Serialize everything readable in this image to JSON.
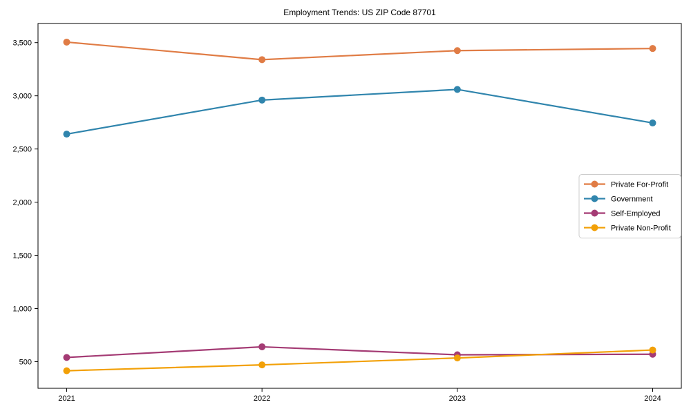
{
  "chart_data": {
    "type": "line",
    "title": "Employment Trends: US ZIP Code 87701",
    "xlabel": "",
    "ylabel": "",
    "categories": [
      "2021",
      "2022",
      "2023",
      "2024"
    ],
    "series": [
      {
        "name": "Private For-Profit",
        "color": "#E07C45",
        "values": [
          3505,
          3340,
          3425,
          3445
        ]
      },
      {
        "name": "Government",
        "color": "#3085AD",
        "values": [
          2640,
          2960,
          3060,
          2745
        ]
      },
      {
        "name": "Self-Employed",
        "color": "#A43B74",
        "values": [
          540,
          640,
          565,
          570
        ]
      },
      {
        "name": "Private Non-Profit",
        "color": "#F2A007",
        "values": [
          415,
          470,
          535,
          610
        ]
      }
    ],
    "ylim": [
      250,
      3680
    ],
    "yticks": [
      {
        "value": 500,
        "label": "500"
      },
      {
        "value": 1000,
        "label": "1,000"
      },
      {
        "value": 1500,
        "label": "1,500"
      },
      {
        "value": 2000,
        "label": "2,000"
      },
      {
        "value": 2500,
        "label": "2,500"
      },
      {
        "value": 3000,
        "label": "3,000"
      },
      {
        "value": 3500,
        "label": "3,500"
      }
    ],
    "grid": false,
    "legend_position": "right",
    "axis_color": "#000000",
    "text_color": "#000000",
    "legend_border_color": "#cccccc",
    "legend_background": "#ffffff"
  }
}
